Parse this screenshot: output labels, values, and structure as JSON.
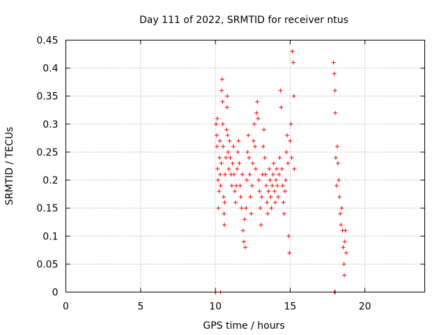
{
  "chart_data": {
    "type": "scatter",
    "title": "Day 111 of 2022, SRMTID for receiver ntus",
    "xlabel": "GPS time / hours",
    "ylabel": "SRMTID / TECUs",
    "xlim": [
      0,
      24
    ],
    "ylim": [
      0,
      0.45
    ],
    "x_ticks": [
      0,
      5,
      10,
      15,
      20
    ],
    "x_tick_labels": [
      "0",
      "5",
      "10",
      "15",
      "20"
    ],
    "y_ticks": [
      0,
      0.05,
      0.1,
      0.15,
      0.2,
      0.25,
      0.3,
      0.35,
      0.4,
      0.45
    ],
    "y_tick_labels": [
      "0",
      "0.05",
      "0.1",
      "0.15",
      "0.2",
      "0.25",
      "0.3",
      "0.35",
      "0.4",
      "0.45"
    ],
    "grid": true,
    "marker": "+",
    "color": "#ff0000",
    "points": [
      [
        10.05,
        0.3
      ],
      [
        10.08,
        0.28
      ],
      [
        10.1,
        0.26
      ],
      [
        10.12,
        0.31
      ],
      [
        10.15,
        0.22
      ],
      [
        10.18,
        0.2
      ],
      [
        10.2,
        0.15
      ],
      [
        10.25,
        0.18
      ],
      [
        10.28,
        0.24
      ],
      [
        10.3,
        0.27
      ],
      [
        10.32,
        0.21
      ],
      [
        10.35,
        0.19
      ],
      [
        10.4,
        0.23
      ],
      [
        10.42,
        0.36
      ],
      [
        10.45,
        0.38
      ],
      [
        10.48,
        0.34
      ],
      [
        10.5,
        0.3
      ],
      [
        10.52,
        0.26
      ],
      [
        10.55,
        0.17
      ],
      [
        10.58,
        0.14
      ],
      [
        10.6,
        0.12
      ],
      [
        10.62,
        0.16
      ],
      [
        10.65,
        0.21
      ],
      [
        10.7,
        0.24
      ],
      [
        10.75,
        0.29
      ],
      [
        10.78,
        0.33
      ],
      [
        10.8,
        0.35
      ],
      [
        10.82,
        0.28
      ],
      [
        10.85,
        0.25
      ],
      [
        10.9,
        0.22
      ],
      [
        10.95,
        0.27
      ],
      [
        11.0,
        0.24
      ],
      [
        11.05,
        0.21
      ],
      [
        11.1,
        0.19
      ],
      [
        11.15,
        0.23
      ],
      [
        11.2,
        0.26
      ],
      [
        11.25,
        0.21
      ],
      [
        11.3,
        0.18
      ],
      [
        11.35,
        0.16
      ],
      [
        11.4,
        0.19
      ],
      [
        11.45,
        0.22
      ],
      [
        11.5,
        0.25
      ],
      [
        11.55,
        0.27
      ],
      [
        11.6,
        0.23
      ],
      [
        11.65,
        0.19
      ],
      [
        11.7,
        0.17
      ],
      [
        11.75,
        0.15
      ],
      [
        11.8,
        0.21
      ],
      [
        11.85,
        0.11
      ],
      [
        11.9,
        0.09
      ],
      [
        11.95,
        0.13
      ],
      [
        12.0,
        0.08
      ],
      [
        12.05,
        0.15
      ],
      [
        12.1,
        0.2
      ],
      [
        12.15,
        0.25
      ],
      [
        12.2,
        0.28
      ],
      [
        12.25,
        0.24
      ],
      [
        12.3,
        0.21
      ],
      [
        12.35,
        0.17
      ],
      [
        12.4,
        0.14
      ],
      [
        12.45,
        0.19
      ],
      [
        12.5,
        0.23
      ],
      [
        12.55,
        0.27
      ],
      [
        12.6,
        0.3
      ],
      [
        12.65,
        0.26
      ],
      [
        12.7,
        0.22
      ],
      [
        12.75,
        0.32
      ],
      [
        12.8,
        0.34
      ],
      [
        12.85,
        0.31
      ],
      [
        12.9,
        0.2
      ],
      [
        12.95,
        0.18
      ],
      [
        13.0,
        0.15
      ],
      [
        13.05,
        0.12
      ],
      [
        13.1,
        0.17
      ],
      [
        13.15,
        0.21
      ],
      [
        13.2,
        0.26
      ],
      [
        13.25,
        0.29
      ],
      [
        13.3,
        0.24
      ],
      [
        13.35,
        0.21
      ],
      [
        13.4,
        0.19
      ],
      [
        13.45,
        0.16
      ],
      [
        13.5,
        0.14
      ],
      [
        13.55,
        0.18
      ],
      [
        13.6,
        0.22
      ],
      [
        13.65,
        0.2
      ],
      [
        13.7,
        0.17
      ],
      [
        13.75,
        0.15
      ],
      [
        13.8,
        0.19
      ],
      [
        13.85,
        0.21
      ],
      [
        13.9,
        0.23
      ],
      [
        13.95,
        0.18
      ],
      [
        14.0,
        0.16
      ],
      [
        14.05,
        0.2
      ],
      [
        14.1,
        0.22
      ],
      [
        14.15,
        0.19
      ],
      [
        14.2,
        0.17
      ],
      [
        14.25,
        0.21
      ],
      [
        14.3,
        0.24
      ],
      [
        14.35,
        0.36
      ],
      [
        14.4,
        0.33
      ],
      [
        14.45,
        0.22
      ],
      [
        14.5,
        0.19
      ],
      [
        14.55,
        0.16
      ],
      [
        14.6,
        0.14
      ],
      [
        14.65,
        0.18
      ],
      [
        14.7,
        0.2
      ],
      [
        14.75,
        0.25
      ],
      [
        14.8,
        0.28
      ],
      [
        14.85,
        0.23
      ],
      [
        14.9,
        0.1
      ],
      [
        14.95,
        0.07
      ],
      [
        15.0,
        0.27
      ],
      [
        15.05,
        0.3
      ],
      [
        15.1,
        0.24
      ],
      [
        15.15,
        0.43
      ],
      [
        15.2,
        0.41
      ],
      [
        15.25,
        0.35
      ],
      [
        15.28,
        0.22
      ],
      [
        17.9,
        0.41
      ],
      [
        17.95,
        0.39
      ],
      [
        18.0,
        0.36
      ],
      [
        18.02,
        0.32
      ],
      [
        18.05,
        0.24
      ],
      [
        18.1,
        0.19
      ],
      [
        18.15,
        0.26
      ],
      [
        18.2,
        0.23
      ],
      [
        18.25,
        0.2
      ],
      [
        18.3,
        0.17
      ],
      [
        18.35,
        0.14
      ],
      [
        18.4,
        0.12
      ],
      [
        18.45,
        0.15
      ],
      [
        18.5,
        0.11
      ],
      [
        18.55,
        0.08
      ],
      [
        18.6,
        0.05
      ],
      [
        18.62,
        0.03
      ],
      [
        18.65,
        0.09
      ],
      [
        18.7,
        0.11
      ],
      [
        18.75,
        0.07
      ],
      [
        10.0,
        0.0
      ],
      [
        10.02,
        0.0
      ],
      [
        10.35,
        0.0
      ],
      [
        17.95,
        0.0
      ],
      [
        18.0,
        0.0
      ],
      [
        18.02,
        0.0
      ]
    ]
  }
}
